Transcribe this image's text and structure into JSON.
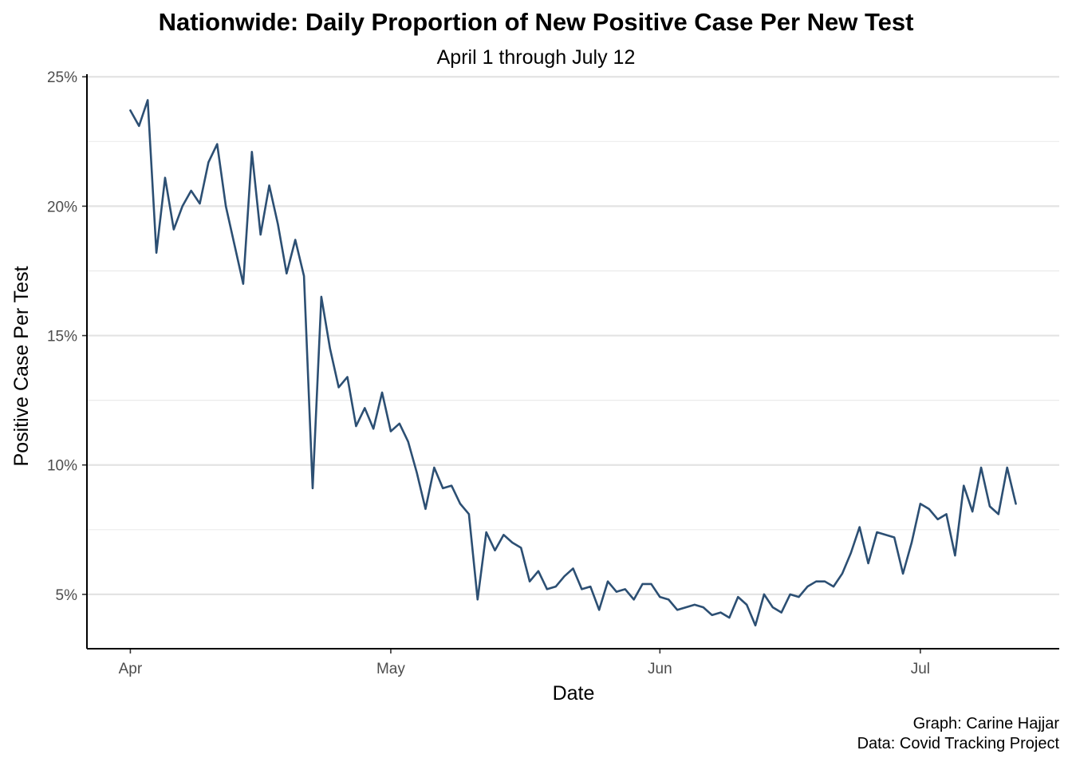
{
  "chart_data": {
    "type": "line",
    "title": "Nationwide: Daily Proportion of New Positive Case Per New Test",
    "subtitle": "April 1 through July 12",
    "xlabel": "Date",
    "ylabel": "Positive Case Per Test",
    "ylim": [
      0.029,
      0.251
    ],
    "xlim": [
      "2020-03-27",
      "2020-07-17"
    ],
    "x_ticks": [
      {
        "date": "2020-04-01",
        "label": "Apr"
      },
      {
        "date": "2020-05-01",
        "label": "May"
      },
      {
        "date": "2020-06-01",
        "label": "Jun"
      },
      {
        "date": "2020-07-01",
        "label": "Jul"
      }
    ],
    "y_ticks": [
      {
        "value": 0.05,
        "label": "5%"
      },
      {
        "value": 0.1,
        "label": "10%"
      },
      {
        "value": 0.15,
        "label": "15%"
      },
      {
        "value": 0.2,
        "label": "20%"
      },
      {
        "value": 0.25,
        "label": "25%"
      }
    ],
    "y_minor_gridlines": [
      0.075,
      0.125,
      0.175,
      0.225
    ],
    "grid": true,
    "line_color": "#2c4f73",
    "series": [
      {
        "x_start": "2020-04-01",
        "x_end": "2020-07-12",
        "values": [
          0.237,
          0.231,
          0.241,
          0.182,
          0.211,
          0.191,
          0.2,
          0.206,
          0.201,
          0.217,
          0.224,
          0.2,
          0.185,
          0.17,
          0.221,
          0.189,
          0.208,
          0.193,
          0.174,
          0.187,
          0.173,
          0.091,
          0.165,
          0.145,
          0.13,
          0.134,
          0.115,
          0.122,
          0.114,
          0.128,
          0.113,
          0.116,
          0.109,
          0.097,
          0.083,
          0.099,
          0.091,
          0.092,
          0.085,
          0.081,
          0.048,
          0.074,
          0.067,
          0.073,
          0.07,
          0.068,
          0.055,
          0.059,
          0.052,
          0.053,
          0.057,
          0.06,
          0.052,
          0.053,
          0.044,
          0.055,
          0.051,
          0.052,
          0.048,
          0.054,
          0.054,
          0.049,
          0.048,
          0.044,
          0.045,
          0.046,
          0.045,
          0.042,
          0.043,
          0.041,
          0.049,
          0.046,
          0.038,
          0.05,
          0.045,
          0.043,
          0.05,
          0.049,
          0.053,
          0.055,
          0.055,
          0.053,
          0.058,
          0.066,
          0.076,
          0.062,
          0.074,
          0.073,
          0.072,
          0.058,
          0.07,
          0.085,
          0.083,
          0.079,
          0.081,
          0.065,
          0.092,
          0.082,
          0.099,
          0.084,
          0.081,
          0.099,
          0.085
        ]
      }
    ]
  },
  "caption": {
    "line1": "Graph: Carine Hajjar",
    "line2": "Data: Covid Tracking Project"
  }
}
